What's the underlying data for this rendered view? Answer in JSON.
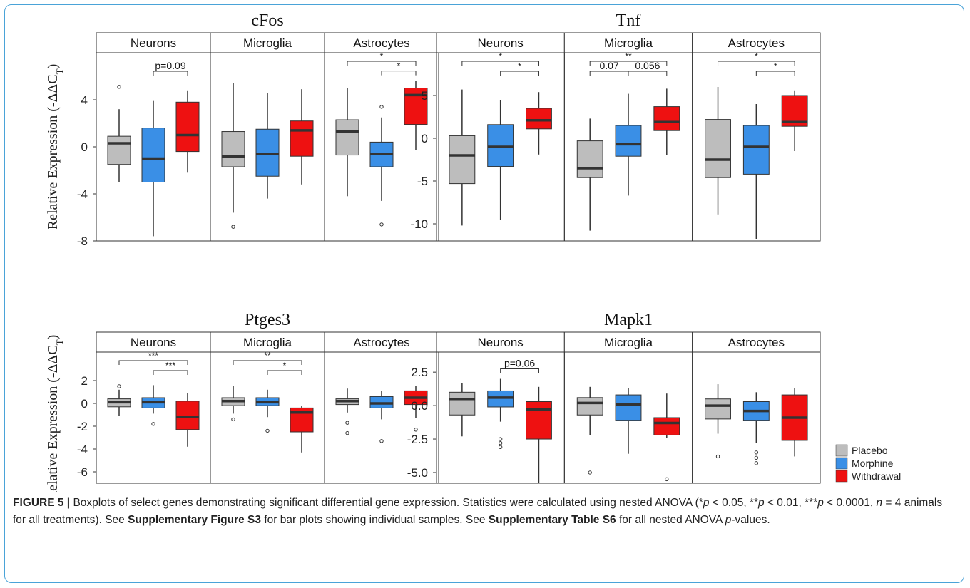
{
  "colors": {
    "Placebo": "#bdbdbd",
    "Morphine": "#3a8fe6",
    "Withdrawal": "#ee1111"
  },
  "legend": [
    "Placebo",
    "Morphine",
    "Withdrawal"
  ],
  "caption": {
    "fig_label": "FIGURE 5 |",
    "part1": " Boxplots of select genes demonstrating significant differential gene expression. Statistics were calculated using nested ANOVA (*",
    "p_a": "p",
    "part2": " < 0.05, **",
    "p_b": "p",
    "part3": " < 0.01, ***",
    "p_c": "p",
    "part4": " < 0.0001, ",
    "n_sym": "n",
    "part5": " = 4 animals for all treatments). See ",
    "ref1": "Supplementary Figure S3",
    "part6": " for bar plots showing individual samples. See ",
    "ref2": "Supplementary Table S6",
    "part7": " for all nested ANOVA ",
    "p_d": "p",
    "part8": "-values."
  },
  "chart_data": [
    {
      "type": "boxplot",
      "title": "cFos",
      "ylabel": "Relative Expression (-ΔΔC",
      "ylabel_sub": "T",
      "ylabel_end": ")",
      "ylim": [
        -8,
        8
      ],
      "yticks": [
        4,
        0,
        -4,
        -8
      ],
      "facets": [
        {
          "name": "Neurons",
          "boxes": [
            {
              "group": "Placebo",
              "whislo": -3,
              "q1": -1.5,
              "med": 0.3,
              "q3": 0.9,
              "whishi": 3.2,
              "fliers": [
                5.1
              ]
            },
            {
              "group": "Morphine",
              "whislo": -7.6,
              "q1": -3,
              "med": -1,
              "q3": 1.6,
              "whishi": 3.9,
              "fliers": []
            },
            {
              "group": "Withdrawal",
              "whislo": -2.2,
              "q1": -0.4,
              "med": 1,
              "q3": 3.8,
              "whishi": 4.8,
              "fliers": []
            }
          ],
          "annotations": [
            {
              "from": 1,
              "to": 2,
              "label": "p=0.09",
              "level": 0
            }
          ]
        },
        {
          "name": "Microglia",
          "boxes": [
            {
              "group": "Placebo",
              "whislo": -5.6,
              "q1": -1.7,
              "med": -0.8,
              "q3": 1.3,
              "whishi": 5.4,
              "fliers": [
                -6.8
              ]
            },
            {
              "group": "Morphine",
              "whislo": -4.4,
              "q1": -2.5,
              "med": -0.6,
              "q3": 1.5,
              "whishi": 4.6,
              "fliers": []
            },
            {
              "group": "Withdrawal",
              "whislo": -3.2,
              "q1": -0.8,
              "med": 1.4,
              "q3": 2.2,
              "whishi": 4.9,
              "fliers": []
            }
          ],
          "annotations": []
        },
        {
          "name": "Astrocytes",
          "boxes": [
            {
              "group": "Placebo",
              "whislo": -4.2,
              "q1": -0.7,
              "med": 1.3,
              "q3": 2.3,
              "whishi": 5,
              "fliers": []
            },
            {
              "group": "Morphine",
              "whislo": -4.6,
              "q1": -1.7,
              "med": -0.6,
              "q3": 0.4,
              "whishi": 2.5,
              "fliers": [
                3.4,
                -6.6
              ]
            },
            {
              "group": "Withdrawal",
              "whislo": -0.3,
              "q1": 1.9,
              "med": 4.4,
              "q3": 5,
              "whishi": 5.6,
              "fliers": []
            }
          ],
          "annotations": [
            {
              "from": 0,
              "to": 2,
              "label": "*",
              "level": 1
            },
            {
              "from": 1,
              "to": 2,
              "label": "*",
              "level": 0
            }
          ]
        }
      ]
    },
    {
      "type": "boxplot",
      "title": "Tnf",
      "ylabel": "",
      "ylim": [
        -12,
        10
      ],
      "yticks": [
        5,
        0,
        -5,
        -10
      ],
      "facets": [
        {
          "name": "Neurons",
          "boxes": [
            {
              "group": "Placebo",
              "whislo": -10.2,
              "q1": -5.3,
              "med": -2,
              "q3": 0.3,
              "whishi": 5.7,
              "fliers": []
            },
            {
              "group": "Morphine",
              "whislo": -9.5,
              "q1": -3.3,
              "med": -1,
              "q3": 1.6,
              "whishi": 4.5,
              "fliers": []
            },
            {
              "group": "Withdrawal",
              "whislo": -1.9,
              "q1": 1.1,
              "med": 2.1,
              "q3": 3.5,
              "whishi": 5.4,
              "fliers": []
            }
          ],
          "annotations": [
            {
              "from": 0,
              "to": 2,
              "label": "*",
              "level": 1
            },
            {
              "from": 1,
              "to": 2,
              "label": "*",
              "level": 0
            }
          ]
        },
        {
          "name": "Microglia",
          "boxes": [
            {
              "group": "Placebo",
              "whislo": -10.8,
              "q1": -4.6,
              "med": -3.5,
              "q3": -0.3,
              "whishi": 2.3,
              "fliers": []
            },
            {
              "group": "Morphine",
              "whislo": -6.7,
              "q1": -2.1,
              "med": -0.7,
              "q3": 1.5,
              "whishi": 5.2,
              "fliers": []
            },
            {
              "group": "Withdrawal",
              "whislo": -2,
              "q1": 0.9,
              "med": 1.9,
              "q3": 3.7,
              "whishi": 5.8,
              "fliers": []
            }
          ],
          "annotations": [
            {
              "from": 0,
              "to": 1,
              "label": "0.07",
              "level": 0
            },
            {
              "from": 1,
              "to": 2,
              "label": "0.056",
              "level": 0
            },
            {
              "from": 0,
              "to": 2,
              "label": "**",
              "level": 1
            }
          ]
        },
        {
          "name": "Astrocytes",
          "boxes": [
            {
              "group": "Placebo",
              "whislo": -8.9,
              "q1": -4.6,
              "med": -2.5,
              "q3": 2.2,
              "whishi": 6,
              "fliers": []
            },
            {
              "group": "Morphine",
              "whislo": -11.8,
              "q1": -4.2,
              "med": -1,
              "q3": 1.5,
              "whishi": 4,
              "fliers": []
            },
            {
              "group": "Withdrawal",
              "whislo": -1.5,
              "q1": 1.4,
              "med": 1.9,
              "q3": 5,
              "whishi": 5.6,
              "fliers": []
            }
          ],
          "annotations": [
            {
              "from": 0,
              "to": 2,
              "label": "*",
              "level": 1
            },
            {
              "from": 1,
              "to": 2,
              "label": "*",
              "level": 0
            }
          ]
        }
      ]
    },
    {
      "type": "boxplot",
      "title": "Ptges3",
      "ylabel": "Relative Expression (-ΔΔC",
      "ylabel_sub": "T",
      "ylabel_end": ")",
      "ylim": [
        -7,
        4.5
      ],
      "yticks": [
        2,
        0,
        -2,
        -4,
        -6
      ],
      "facets": [
        {
          "name": "Neurons",
          "boxes": [
            {
              "group": "Placebo",
              "whislo": -1.1,
              "q1": -0.3,
              "med": 0.1,
              "q3": 0.4,
              "whishi": 1.2,
              "fliers": [
                1.5
              ]
            },
            {
              "group": "Morphine",
              "whislo": -0.9,
              "q1": -0.4,
              "med": 0.1,
              "q3": 0.5,
              "whishi": 1.6,
              "fliers": [
                -1.8
              ]
            },
            {
              "group": "Withdrawal",
              "whislo": -3.8,
              "q1": -2.3,
              "med": -1.2,
              "q3": 0.2,
              "whishi": 0.9,
              "fliers": []
            }
          ],
          "annotations": [
            {
              "from": 0,
              "to": 2,
              "label": "***",
              "level": 1
            },
            {
              "from": 1,
              "to": 2,
              "label": "***",
              "level": 0
            }
          ]
        },
        {
          "name": "Microglia",
          "boxes": [
            {
              "group": "Placebo",
              "whislo": -0.9,
              "q1": -0.2,
              "med": 0.2,
              "q3": 0.5,
              "whishi": 1.5,
              "fliers": [
                -1.4
              ]
            },
            {
              "group": "Morphine",
              "whislo": -1.2,
              "q1": -0.2,
              "med": 0.1,
              "q3": 0.5,
              "whishi": 1.2,
              "fliers": [
                -2.4
              ]
            },
            {
              "group": "Withdrawal",
              "whislo": -4.3,
              "q1": -2.5,
              "med": -0.8,
              "q3": -0.4,
              "whishi": -0.2,
              "fliers": []
            }
          ],
          "annotations": [
            {
              "from": 0,
              "to": 2,
              "label": "**",
              "level": 1
            },
            {
              "from": 1,
              "to": 2,
              "label": "*",
              "level": 0
            }
          ]
        },
        {
          "name": "Astrocytes",
          "boxes": [
            {
              "group": "Placebo",
              "whislo": -0.8,
              "q1": -0.1,
              "med": 0.2,
              "q3": 0.4,
              "whishi": 1.3,
              "fliers": [
                -1.7,
                -2.6
              ]
            },
            {
              "group": "Morphine",
              "whislo": -1.4,
              "q1": -0.4,
              "med": 0,
              "q3": 0.6,
              "whishi": 1.1,
              "fliers": [
                -3.3
              ]
            },
            {
              "group": "Withdrawal",
              "whislo": -1.3,
              "q1": -0.1,
              "med": 0.5,
              "q3": 1.1,
              "whishi": 1.5,
              "fliers": [
                -2.3
              ]
            }
          ],
          "annotations": []
        }
      ]
    },
    {
      "type": "boxplot",
      "title": "Mapk1",
      "ylabel": "",
      "ylim": [
        -5.8,
        4
      ],
      "yticks": [
        "2.5",
        "0.0",
        "-2.5",
        "-5.0"
      ],
      "ytick_values": [
        2.5,
        0,
        -2.5,
        -5
      ],
      "facets": [
        {
          "name": "Neurons",
          "boxes": [
            {
              "group": "Placebo",
              "whislo": -2.3,
              "q1": -0.7,
              "med": 0.5,
              "q3": 1,
              "whishi": 1.7,
              "fliers": []
            },
            {
              "group": "Morphine",
              "whislo": -1.2,
              "q1": -0.1,
              "med": 0.6,
              "q3": 1.1,
              "whishi": 2,
              "fliers": [
                -2.5,
                -2.8,
                -3.1
              ]
            },
            {
              "group": "Withdrawal",
              "whislo": -5.8,
              "q1": -2.5,
              "med": -0.3,
              "q3": 0.3,
              "whishi": 1.4,
              "fliers": []
            }
          ],
          "annotations": [
            {
              "from": 1,
              "to": 2,
              "label": "p=0.06",
              "level": 0
            }
          ]
        },
        {
          "name": "Microglia",
          "boxes": [
            {
              "group": "Placebo",
              "whislo": -2.2,
              "q1": -0.7,
              "med": 0.2,
              "q3": 0.6,
              "whishi": 1.4,
              "fliers": [
                -5
              ]
            },
            {
              "group": "Morphine",
              "whislo": -3.6,
              "q1": -1.1,
              "med": 0.1,
              "q3": 0.8,
              "whishi": 1.3,
              "fliers": []
            },
            {
              "group": "Withdrawal",
              "whislo": -2.4,
              "q1": -2.2,
              "med": -1.3,
              "q3": -0.9,
              "whishi": 0.9,
              "fliers": [
                -5.5
              ]
            }
          ],
          "annotations": []
        },
        {
          "name": "Astrocytes",
          "boxes": [
            {
              "group": "Placebo",
              "whislo": -2.1,
              "q1": -1,
              "med": 0,
              "q3": 0.5,
              "whishi": 1.6,
              "fliers": [
                -3.8
              ]
            },
            {
              "group": "Morphine",
              "whislo": -2.8,
              "q1": -1.1,
              "med": -0.4,
              "q3": 0.3,
              "whishi": 1,
              "fliers": [
                -3.5,
                -3.9,
                -4.3
              ]
            },
            {
              "group": "Withdrawal",
              "whislo": -3.8,
              "q1": -2.6,
              "med": -0.9,
              "q3": 0.8,
              "whishi": 1.3,
              "fliers": []
            }
          ],
          "annotations": []
        }
      ]
    }
  ]
}
